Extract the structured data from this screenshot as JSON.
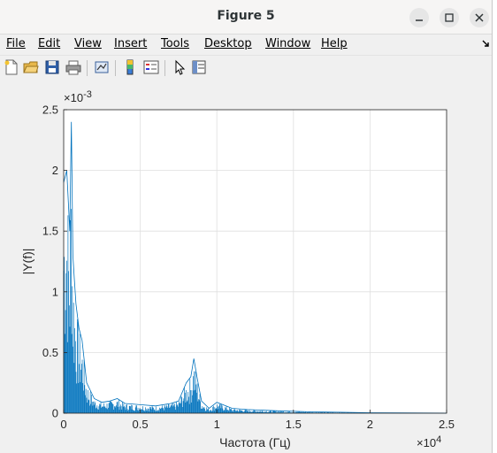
{
  "window": {
    "title": "Figure 5"
  },
  "menu": [
    {
      "label": "File"
    },
    {
      "label": "Edit"
    },
    {
      "label": "View"
    },
    {
      "label": "Insert"
    },
    {
      "label": "Tools"
    },
    {
      "label": "Desktop"
    },
    {
      "label": "Window"
    },
    {
      "label": "Help"
    }
  ],
  "toolbar_icons": [
    "new-figure-icon",
    "open-file-icon",
    "save-icon",
    "print-icon",
    "link-plot-icon",
    "colorbar-icon",
    "legend-icon",
    "pointer-icon",
    "property-editor-icon"
  ],
  "chart_data": {
    "type": "line",
    "title": "",
    "xlabel": "Частота (Гц)",
    "ylabel": "|Y(f)|",
    "xlim": [
      0,
      25000
    ],
    "ylim": [
      0,
      0.0025
    ],
    "x_ticks": [
      "0",
      "0.5",
      "1",
      "1.5",
      "2",
      "2.5"
    ],
    "y_ticks": [
      "0",
      "0.5",
      "1",
      "1.5",
      "2",
      "2.5"
    ],
    "x_multiplier": "×10",
    "x_exponent": "4",
    "y_multiplier": "×10",
    "y_exponent": "-3",
    "grid": true,
    "color": "#0072bd",
    "series": [
      {
        "x": [
          0,
          200,
          400,
          500,
          600,
          700,
          800,
          1000,
          1200,
          1500,
          2000,
          2500,
          3000,
          3500,
          4000,
          5000,
          6000,
          7000,
          7500,
          8000,
          8300,
          8500,
          8700,
          9000,
          9500,
          10000,
          11000,
          12000,
          14000,
          16000,
          18000,
          20000,
          22000,
          25000
        ],
        "values": [
          0.0019,
          0.002,
          0.0015,
          0.0024,
          0.0013,
          0.0011,
          0.0009,
          0.0007,
          0.0006,
          0.00025,
          0.00012,
          9e-05,
          0.0001,
          0.00012,
          8e-05,
          7e-05,
          6e-05,
          8e-05,
          0.0001,
          0.00025,
          0.0003,
          0.00045,
          0.0003,
          0.0001,
          4e-05,
          9e-05,
          4e-05,
          3e-05,
          2e-05,
          1.2e-05,
          8e-06,
          4e-06,
          2e-06,
          1e-06
        ]
      }
    ]
  }
}
